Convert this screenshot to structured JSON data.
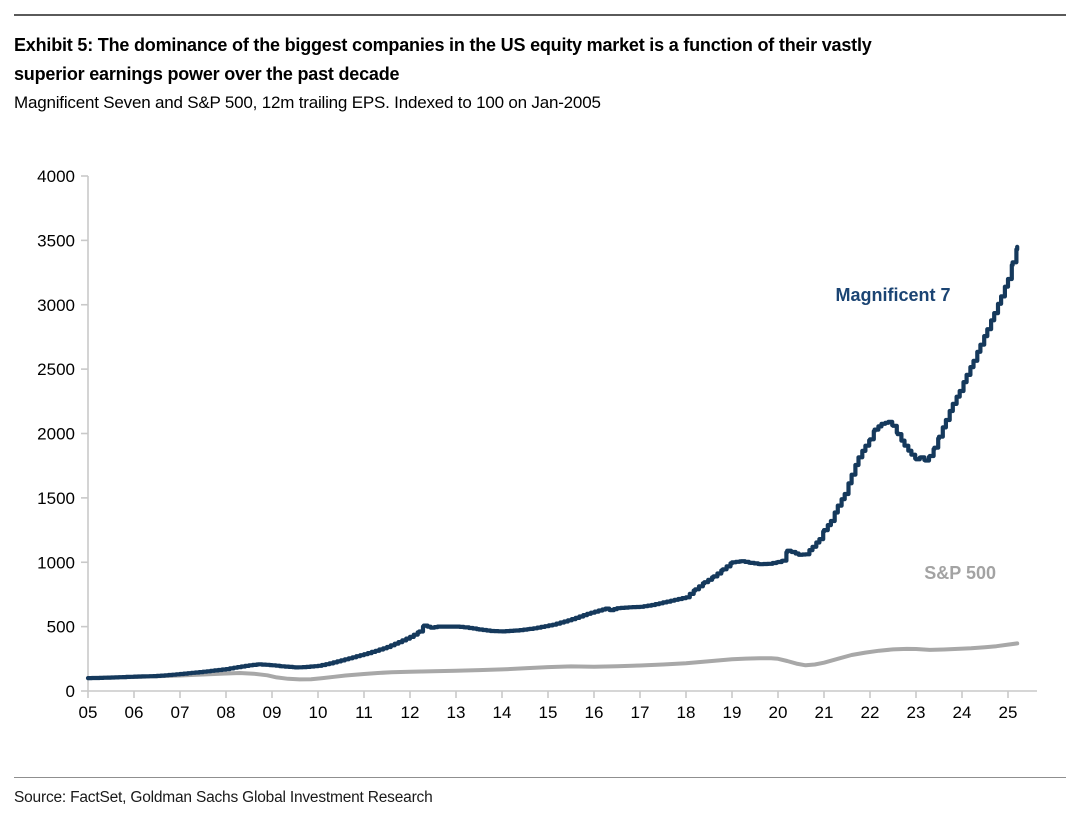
{
  "page": {
    "exhibit_title_line1": "Exhibit 5: The dominance of the biggest companies in the US equity market is a function of their vastly",
    "exhibit_title_line2": "superior earnings power over the past decade",
    "subtitle": "Magnificent Seven and S&P 500, 12m trailing EPS. Indexed to 100 on Jan-2005",
    "source": "Source: FactSet, Goldman Sachs Global Investment Research"
  },
  "colors": {
    "mag7_line": "#15395C",
    "mag7_label": "#1B4473",
    "sp500_line": "#A8A8A8",
    "sp500_label": "#A3A3A3",
    "axis": "#C9C9C9",
    "tick_text": "#000000"
  },
  "chart_data": {
    "type": "line",
    "title": "Exhibit 5: The dominance of the biggest companies in the US equity market is a function of their vastly superior earnings power over the past decade",
    "subtitle": "Magnificent Seven and S&P 500, 12m trailing EPS. Indexed to 100 on Jan-2005",
    "xlabel": "",
    "ylabel": "",
    "x_axis": {
      "unit": "year",
      "start": 2005,
      "end": 2025,
      "tick_labels": [
        "05",
        "06",
        "07",
        "08",
        "09",
        "10",
        "11",
        "12",
        "13",
        "14",
        "15",
        "16",
        "17",
        "18",
        "19",
        "20",
        "21",
        "22",
        "23",
        "24",
        "25"
      ]
    },
    "y_axis": {
      "min": 0,
      "max": 4000,
      "step": 500,
      "ticks": [
        0,
        500,
        1000,
        1500,
        2000,
        2500,
        3000,
        3500,
        4000
      ]
    },
    "grid": false,
    "legend_position": "inline-annotations",
    "series": [
      {
        "name": "S&P 500",
        "style": "smooth",
        "color_key": "sp500_line",
        "stroke_width": 4,
        "points": [
          [
            2005.0,
            100
          ],
          [
            2005.5,
            104
          ],
          [
            2006.0,
            109
          ],
          [
            2006.5,
            114
          ],
          [
            2007.0,
            120
          ],
          [
            2007.5,
            128
          ],
          [
            2008.0,
            136
          ],
          [
            2008.3,
            140
          ],
          [
            2008.6,
            134
          ],
          [
            2008.9,
            122
          ],
          [
            2009.1,
            106
          ],
          [
            2009.35,
            95
          ],
          [
            2009.6,
            90
          ],
          [
            2009.85,
            92
          ],
          [
            2010.1,
            100
          ],
          [
            2010.35,
            110
          ],
          [
            2010.6,
            120
          ],
          [
            2011.0,
            132
          ],
          [
            2011.3,
            140
          ],
          [
            2011.6,
            146
          ],
          [
            2012.0,
            150
          ],
          [
            2012.5,
            154
          ],
          [
            2013.0,
            158
          ],
          [
            2013.5,
            162
          ],
          [
            2014.0,
            168
          ],
          [
            2014.5,
            176
          ],
          [
            2015.0,
            186
          ],
          [
            2015.5,
            191
          ],
          [
            2016.0,
            189
          ],
          [
            2016.5,
            192
          ],
          [
            2017.0,
            198
          ],
          [
            2017.5,
            206
          ],
          [
            2018.0,
            216
          ],
          [
            2018.5,
            231
          ],
          [
            2019.0,
            246
          ],
          [
            2019.3,
            252
          ],
          [
            2019.6,
            255
          ],
          [
            2019.85,
            254
          ],
          [
            2020.0,
            250
          ],
          [
            2020.2,
            233
          ],
          [
            2020.4,
            213
          ],
          [
            2020.6,
            200
          ],
          [
            2020.8,
            206
          ],
          [
            2021.0,
            220
          ],
          [
            2021.3,
            250
          ],
          [
            2021.6,
            280
          ],
          [
            2021.9,
            298
          ],
          [
            2022.2,
            313
          ],
          [
            2022.5,
            323
          ],
          [
            2022.8,
            327
          ],
          [
            2023.0,
            326
          ],
          [
            2023.3,
            319
          ],
          [
            2023.6,
            322
          ],
          [
            2023.9,
            327
          ],
          [
            2024.2,
            332
          ],
          [
            2024.5,
            340
          ],
          [
            2024.75,
            348
          ],
          [
            2025.0,
            360
          ],
          [
            2025.2,
            370
          ]
        ]
      },
      {
        "name": "Magnificent 7",
        "style": "step-monthly",
        "color_key": "mag7_line",
        "stroke_width": 4.2,
        "points": [
          [
            2005.0,
            100
          ],
          [
            2005.25,
            102
          ],
          [
            2005.5,
            105
          ],
          [
            2005.75,
            108
          ],
          [
            2006.0,
            112
          ],
          [
            2006.25,
            114
          ],
          [
            2006.5,
            117
          ],
          [
            2006.75,
            124
          ],
          [
            2007.0,
            132
          ],
          [
            2007.25,
            141
          ],
          [
            2007.5,
            150
          ],
          [
            2007.75,
            160
          ],
          [
            2008.0,
            170
          ],
          [
            2008.25,
            186
          ],
          [
            2008.5,
            200
          ],
          [
            2008.7,
            207
          ],
          [
            2009.0,
            200
          ],
          [
            2009.2,
            192
          ],
          [
            2009.5,
            183
          ],
          [
            2009.75,
            187
          ],
          [
            2010.0,
            196
          ],
          [
            2010.25,
            214
          ],
          [
            2010.5,
            238
          ],
          [
            2010.75,
            262
          ],
          [
            2011.0,
            286
          ],
          [
            2011.25,
            312
          ],
          [
            2011.5,
            342
          ],
          [
            2011.75,
            380
          ],
          [
            2012.0,
            420
          ],
          [
            2012.2,
            462
          ],
          [
            2012.3,
            508
          ],
          [
            2012.45,
            492
          ],
          [
            2012.6,
            500
          ],
          [
            2013.0,
            500
          ],
          [
            2013.2,
            494
          ],
          [
            2013.5,
            478
          ],
          [
            2013.75,
            466
          ],
          [
            2014.0,
            463
          ],
          [
            2014.3,
            470
          ],
          [
            2014.6,
            482
          ],
          [
            2014.85,
            498
          ],
          [
            2015.1,
            515
          ],
          [
            2015.35,
            540
          ],
          [
            2015.6,
            568
          ],
          [
            2015.85,
            600
          ],
          [
            2016.1,
            625
          ],
          [
            2016.25,
            640
          ],
          [
            2016.35,
            628
          ],
          [
            2016.5,
            643
          ],
          [
            2016.75,
            650
          ],
          [
            2017.0,
            654
          ],
          [
            2017.25,
            668
          ],
          [
            2017.5,
            688
          ],
          [
            2017.75,
            708
          ],
          [
            2018.0,
            728
          ],
          [
            2018.2,
            790
          ],
          [
            2018.4,
            845
          ],
          [
            2018.6,
            890
          ],
          [
            2018.8,
            945
          ],
          [
            2019.0,
            1000
          ],
          [
            2019.2,
            1008
          ],
          [
            2019.4,
            995
          ],
          [
            2019.6,
            985
          ],
          [
            2019.8,
            988
          ],
          [
            2020.0,
            1002
          ],
          [
            2020.1,
            1012
          ],
          [
            2020.2,
            1090
          ],
          [
            2020.3,
            1080
          ],
          [
            2020.45,
            1058
          ],
          [
            2020.6,
            1062
          ],
          [
            2020.75,
            1120
          ],
          [
            2020.9,
            1180
          ],
          [
            2021.0,
            1250
          ],
          [
            2021.15,
            1320
          ],
          [
            2021.3,
            1440
          ],
          [
            2021.45,
            1530
          ],
          [
            2021.6,
            1680
          ],
          [
            2021.75,
            1815
          ],
          [
            2021.9,
            1905
          ],
          [
            2022.0,
            1955
          ],
          [
            2022.1,
            2030
          ],
          [
            2022.25,
            2075
          ],
          [
            2022.4,
            2090
          ],
          [
            2022.5,
            2060
          ],
          [
            2022.6,
            1995
          ],
          [
            2022.75,
            1905
          ],
          [
            2022.9,
            1835
          ],
          [
            2023.0,
            1800
          ],
          [
            2023.1,
            1815
          ],
          [
            2023.2,
            1790
          ],
          [
            2023.3,
            1825
          ],
          [
            2023.4,
            1890
          ],
          [
            2023.5,
            1975
          ],
          [
            2023.65,
            2105
          ],
          [
            2023.8,
            2230
          ],
          [
            2023.95,
            2330
          ],
          [
            2024.1,
            2455
          ],
          [
            2024.25,
            2565
          ],
          [
            2024.4,
            2690
          ],
          [
            2024.55,
            2810
          ],
          [
            2024.7,
            2935
          ],
          [
            2024.85,
            3065
          ],
          [
            2025.0,
            3200
          ],
          [
            2025.1,
            3330
          ],
          [
            2025.2,
            3450
          ]
        ]
      }
    ],
    "annotations": [
      {
        "id": "mag7-series-label",
        "text": "Magnificent 7",
        "year": 2022.5,
        "value": 3075,
        "color_key": "mag7_label"
      },
      {
        "id": "sp500-series-label",
        "text": "S&P 500",
        "year": 2023.96,
        "value": 915,
        "color_key": "sp500_label"
      }
    ]
  }
}
